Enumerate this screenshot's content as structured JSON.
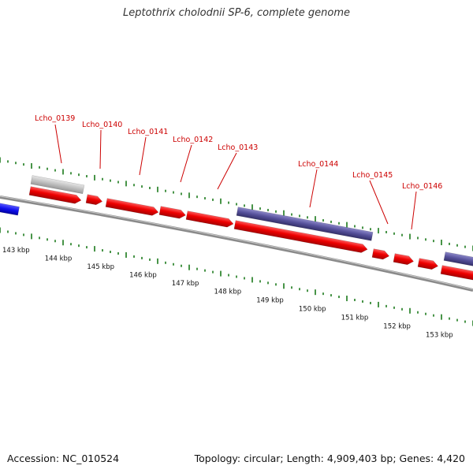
{
  "title": "Leptothrix cholodnii SP-6, complete genome",
  "footer": {
    "accession": "Accession: NC_010524",
    "summary": "Topology: circular; Length: 4,909,403 bp; Genes: 4,420"
  },
  "colors": {
    "forward_gene": "#ee0000",
    "reverse_gene": "#ee0000",
    "highlight_gene": "#55509a",
    "pseudo_gene": "#c0c0c0",
    "other_gene": "#1010ee",
    "label": "#cc0000",
    "tick": "#1a7a1a",
    "backbone": "#808080"
  },
  "genes": [
    {
      "id": "Lcho_0139",
      "label": "Lcho_0139"
    },
    {
      "id": "Lcho_0140",
      "label": "Lcho_0140"
    },
    {
      "id": "Lcho_0141",
      "label": "Lcho_0141"
    },
    {
      "id": "Lcho_0142",
      "label": "Lcho_0142"
    },
    {
      "id": "Lcho_0143",
      "label": "Lcho_0143"
    },
    {
      "id": "Lcho_0144",
      "label": "Lcho_0144"
    },
    {
      "id": "Lcho_0145",
      "label": "Lcho_0145"
    },
    {
      "id": "Lcho_0146",
      "label": "Lcho_0146"
    }
  ],
  "kbp_labels": [
    "143 kbp",
    "144 kbp",
    "145 kbp",
    "146 kbp",
    "147 kbp",
    "148 kbp",
    "149 kbp",
    "150 kbp",
    "151 kbp",
    "152 kbp",
    "153 kbp"
  ]
}
